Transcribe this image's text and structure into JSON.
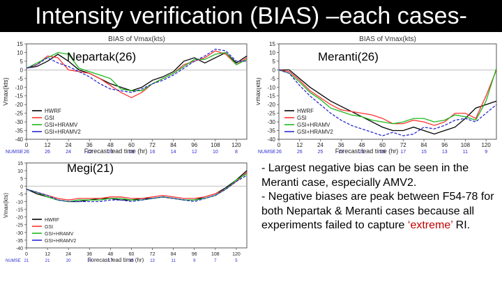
{
  "slide": {
    "title": "Intensity verification (BIAS) –each cases-"
  },
  "bullets": [
    {
      "text": "- Largest negative bias can be seen in the Meranti case, especially AMV2."
    },
    {
      "prefix": "- Negative biases are peak between F54-78 for both Nepartak & Meranti cases because all experiments failed to capture ",
      "highlight": "‘extreme’",
      "suffix": " RI."
    }
  ],
  "colors": {
    "HWRF": "#000000",
    "GSI": "#ff3333",
    "GSI+HRAMV": "#1cb81c",
    "GSI+HRAMV2": "#2a2ad0",
    "highlight": "#c00000"
  },
  "chart_data": [
    {
      "type": "line",
      "title": "BIAS of Vmax(kts)",
      "case_label": "Nepartak(26)",
      "xlabel": "Forecast lead time (hr)",
      "ylabel": "Vmax(kts)",
      "ylim": [
        -40,
        15
      ],
      "yticks": [
        15,
        10,
        5,
        0,
        -5,
        -10,
        -15,
        -20,
        -25,
        -30,
        -35,
        -40
      ],
      "x": [
        0,
        6,
        12,
        18,
        24,
        30,
        36,
        42,
        48,
        54,
        60,
        66,
        72,
        78,
        84,
        90,
        96,
        102,
        108,
        114,
        120,
        126
      ],
      "xticks": [
        0,
        12,
        24,
        36,
        48,
        60,
        72,
        84,
        96,
        108,
        120
      ],
      "nsample_label": "NUMSE",
      "nsample": [
        "26",
        "26",
        "24",
        "22",
        "20",
        "18",
        "16",
        "14",
        "12",
        "10",
        "8"
      ],
      "legend": [
        "HWRF",
        "GSI",
        "GSI+HRAMV",
        "GSI+HRAMV2"
      ],
      "legend_placement": "bottom-left",
      "grid": false,
      "series": [
        {
          "name": "HWRF",
          "values": [
            1,
            2,
            5,
            9,
            5,
            0,
            -2,
            -5,
            -8,
            -10,
            -12,
            -10,
            -6,
            -4,
            -1,
            5,
            7,
            4,
            7,
            10,
            4,
            8
          ]
        },
        {
          "name": "GSI",
          "values": [
            1,
            3,
            8,
            7,
            0,
            -1,
            -2,
            -5,
            -9,
            -13,
            -16,
            -13,
            -8,
            -5,
            -2,
            3,
            5,
            7,
            11,
            9,
            3,
            7
          ]
        },
        {
          "name": "GSI+HRAMV",
          "values": [
            1,
            4,
            7,
            10,
            9,
            1,
            -1,
            -3,
            -5,
            -11,
            -12,
            -12,
            -8,
            -5,
            -2,
            2,
            6,
            6,
            9,
            10,
            3,
            6
          ]
        },
        {
          "name": "GSI+HRAMV2",
          "values": [
            1,
            3,
            7,
            4,
            2,
            -1,
            -4,
            -8,
            -11,
            -12,
            -13,
            -11,
            -8,
            -6,
            -3,
            1,
            5,
            8,
            12,
            11,
            5,
            5
          ]
        }
      ]
    },
    {
      "type": "line",
      "title": "BIAS of Vmax(kts)",
      "case_label": "Meranti(26)",
      "xlabel": "Forecast lead time (hr)",
      "ylabel": "Vmax(kts)",
      "ylim": [
        -40,
        15
      ],
      "yticks": [
        15,
        10,
        5,
        0,
        -5,
        -10,
        -15,
        -20,
        -25,
        -30,
        -35,
        -40
      ],
      "x": [
        0,
        6,
        12,
        18,
        24,
        30,
        36,
        42,
        48,
        54,
        60,
        66,
        72,
        78,
        84,
        90,
        96,
        102,
        108,
        114,
        120,
        126
      ],
      "xticks": [
        0,
        12,
        24,
        36,
        48,
        60,
        72,
        84,
        96,
        108,
        120
      ],
      "nsample_label": "NUMSE",
      "nsample": [
        "26",
        "26",
        "25",
        "23",
        "21",
        "19",
        "17",
        "15",
        "13",
        "11",
        "9"
      ],
      "legend": [
        "HWRF",
        "GSI",
        "GSI+HRAMV",
        "GSI+HRAMV2"
      ],
      "legend_placement": "bottom-left",
      "grid": false,
      "series": [
        {
          "name": "HWRF",
          "values": [
            0,
            0,
            -5,
            -10,
            -14,
            -18,
            -21,
            -24,
            -27,
            -30,
            -33,
            -35,
            -35,
            -33,
            -35,
            -37,
            -35,
            -33,
            -28,
            -22,
            -20,
            -18
          ]
        },
        {
          "name": "GSI",
          "values": [
            0,
            -1,
            -6,
            -12,
            -16,
            -20,
            -23,
            -24,
            -25,
            -26,
            -28,
            -31,
            -31,
            -29,
            -30,
            -32,
            -30,
            -25,
            -25,
            -28,
            -15,
            0
          ]
        },
        {
          "name": "GSI+HRAMV",
          "values": [
            0,
            -2,
            -7,
            -13,
            -17,
            -22,
            -24,
            -26,
            -27,
            -29,
            -30,
            -31,
            -30,
            -28,
            -28,
            -30,
            -29,
            -26,
            -27,
            -29,
            -18,
            1
          ]
        },
        {
          "name": "GSI+HRAMV2",
          "values": [
            0,
            -2,
            -9,
            -15,
            -20,
            -25,
            -29,
            -32,
            -34,
            -36,
            -38,
            -36,
            -38,
            -37,
            -33,
            -34,
            -32,
            -29,
            -28,
            -30,
            -25,
            -20
          ]
        }
      ]
    },
    {
      "type": "line",
      "title": "",
      "case_label": "Megi(21)",
      "xlabel": "Forecast lead time (hr)",
      "ylabel": "Vmax(kts)",
      "ylim": [
        -40,
        15
      ],
      "yticks": [
        15,
        10,
        5,
        0,
        -5,
        -10,
        -15,
        -20,
        -25,
        -30,
        -35,
        -40
      ],
      "x": [
        0,
        6,
        12,
        18,
        24,
        30,
        36,
        42,
        48,
        54,
        60,
        66,
        72,
        78,
        84,
        90,
        96,
        102,
        108,
        114,
        120,
        126
      ],
      "xticks": [
        0,
        12,
        24,
        36,
        48,
        60,
        72,
        84,
        96,
        108,
        120
      ],
      "nsample_label": "NUMSE",
      "nsample": [
        "21",
        "21",
        "20",
        "19",
        "17",
        "15",
        "13",
        "11",
        "9",
        "7",
        "5"
      ],
      "legend": [
        "HWRF",
        "GSI",
        "GSI+HRAMV",
        "GSI+HRAMV2"
      ],
      "legend_placement": "bottom-left",
      "grid": false,
      "series": [
        {
          "name": "HWRF",
          "values": [
            -2,
            -5,
            -7,
            -9,
            -10,
            -10,
            -9,
            -8,
            -8,
            -9,
            -9,
            -8,
            -8,
            -7,
            -8,
            -9,
            -9,
            -7,
            -5,
            -1,
            4,
            10
          ]
        },
        {
          "name": "GSI",
          "values": [
            -2,
            -4,
            -6,
            -8,
            -9,
            -8,
            -8,
            -8,
            -7,
            -7,
            -8,
            -8,
            -7,
            -6,
            -7,
            -8,
            -8,
            -7,
            -5,
            -2,
            3,
            9
          ]
        },
        {
          "name": "GSI+HRAMV",
          "values": [
            -2,
            -4,
            -7,
            -9,
            -10,
            -9,
            -9,
            -9,
            -8,
            -8,
            -9,
            -9,
            -8,
            -7,
            -8,
            -9,
            -9,
            -8,
            -6,
            -2,
            4,
            8
          ]
        },
        {
          "name": "GSI+HRAMV2",
          "values": [
            -2,
            -4,
            -6,
            -9,
            -10,
            -10,
            -10,
            -10,
            -9,
            -9,
            -10,
            -9,
            -8,
            -7,
            -8,
            -9,
            -10,
            -8,
            -6,
            -2,
            3,
            7
          ]
        }
      ]
    }
  ]
}
